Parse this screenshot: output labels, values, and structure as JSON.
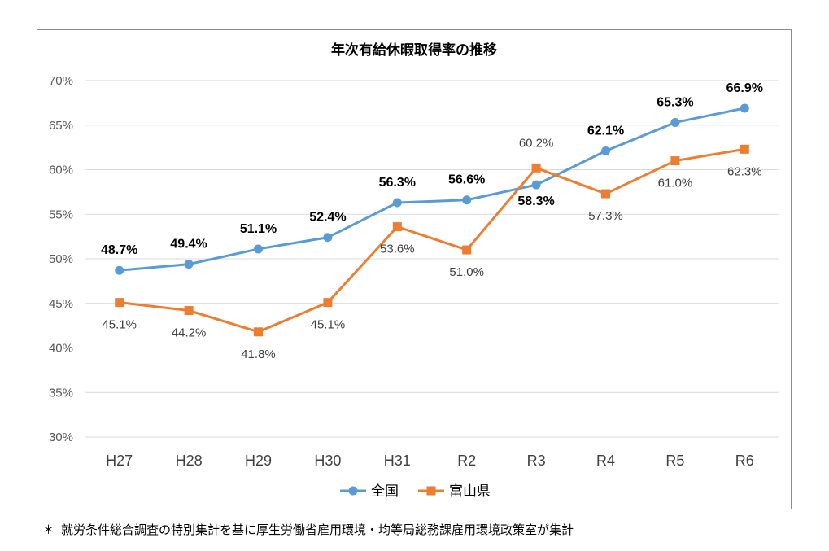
{
  "chart_data": {
    "type": "line",
    "title": "年次有給休暇取得率の推移",
    "categories": [
      "H27",
      "H28",
      "H29",
      "H30",
      "H31",
      "R2",
      "R3",
      "R4",
      "R5",
      "R6"
    ],
    "ylim": [
      30,
      70
    ],
    "yticks": [
      30,
      35,
      40,
      45,
      50,
      55,
      60,
      65,
      70
    ],
    "y_tick_suffix": "%",
    "xlabel": "",
    "ylabel": "",
    "grid": true,
    "legend_position": "bottom",
    "series": [
      {
        "name": "全国",
        "marker": "circle",
        "color": "#5b9bd5",
        "values": [
          48.7,
          49.4,
          51.1,
          52.4,
          56.3,
          56.6,
          58.3,
          62.1,
          65.3,
          66.9
        ],
        "labels": [
          "48.7%",
          "49.4%",
          "51.1%",
          "52.4%",
          "56.3%",
          "56.6%",
          "58.3%",
          "62.1%",
          "65.3%",
          "66.9%"
        ]
      },
      {
        "name": "富山県",
        "marker": "square",
        "color": "#ed7d31",
        "values": [
          45.1,
          44.2,
          41.8,
          45.1,
          53.6,
          51.0,
          60.2,
          57.3,
          61.0,
          62.3
        ],
        "labels": [
          "45.1%",
          "44.2%",
          "41.8%",
          "45.1%",
          "53.6%",
          "51.0%",
          "60.2%",
          "57.3%",
          "61.0%",
          "62.3%"
        ]
      }
    ]
  },
  "footnote": {
    "marker": "＊",
    "text": "就労条件総合調査の特別集計を基に厚生労働省雇用環境・均等局総務課雇用環境政策室が集計"
  }
}
